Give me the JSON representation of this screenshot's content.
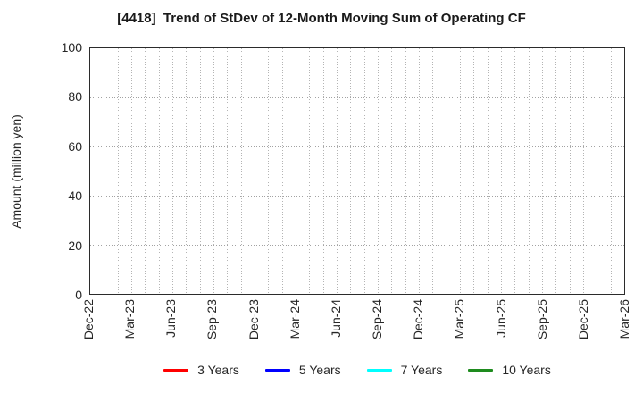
{
  "chart_data": {
    "type": "line",
    "title": "[4418]  Trend of StDev of 12-Month Moving Sum of Operating CF",
    "xlabel": "",
    "ylabel": "Amount (million yen)",
    "x_tick_labels": [
      "Dec-22",
      "Mar-23",
      "Jun-23",
      "Sep-23",
      "Dec-23",
      "Mar-24",
      "Jun-24",
      "Sep-24",
      "Dec-24",
      "Mar-25",
      "Jun-25",
      "Sep-25",
      "Dec-25",
      "Mar-26"
    ],
    "months_per_major_tick": 3,
    "minor_gridlines": "monthly",
    "ylim": [
      0,
      100
    ],
    "yticks": [
      0,
      20,
      40,
      60,
      80,
      100
    ],
    "grid": true,
    "legend_position": "bottom-center",
    "series": [
      {
        "name": "3 Years",
        "color": "#ff0000",
        "values": []
      },
      {
        "name": "5 Years",
        "color": "#0000ff",
        "values": []
      },
      {
        "name": "7 Years",
        "color": "#00ffff",
        "values": []
      },
      {
        "name": "10 Years",
        "color": "#1e8b1e",
        "values": []
      }
    ]
  }
}
